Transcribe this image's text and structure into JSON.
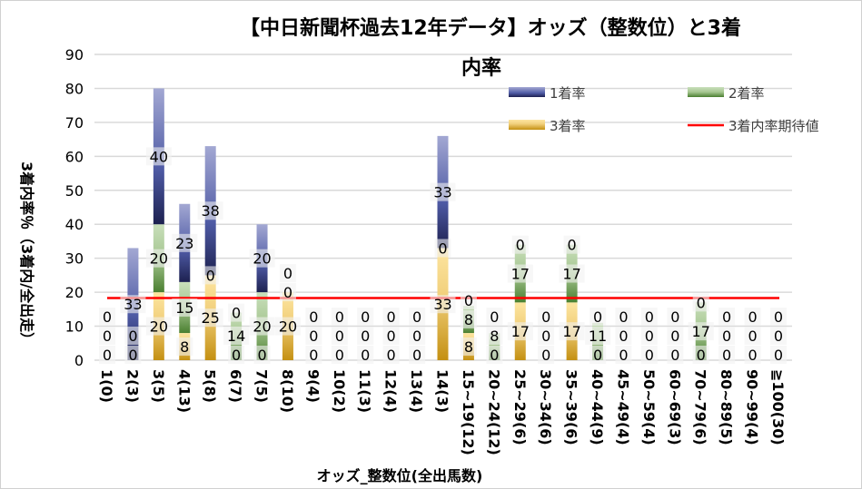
{
  "chart_data": {
    "type": "bar",
    "stacked": true,
    "title_line1": "【中日新聞杯過去12年データ】オッズ（整数位）と3着",
    "title_line2": "内率",
    "xlabel": "オッズ_整数位(全出馬数)",
    "ylabel": "3着内率％（3着内/全出走）",
    "ylim": [
      0,
      90
    ],
    "yticks": [
      "0",
      "10",
      "20",
      "30",
      "40",
      "50",
      "60",
      "70",
      "80",
      "90"
    ],
    "grid": true,
    "legend_position": "top-right",
    "categories": [
      "1(0)",
      "2(3)",
      "3(5)",
      "4(13)",
      "5(8)",
      "6(7)",
      "7(5)",
      "8(10)",
      "9(4)",
      "10(2)",
      "11(3)",
      "12(4)",
      "13(4)",
      "14(3)",
      "15~19(12)",
      "20~24(12)",
      "25~29(6)",
      "30~34(6)",
      "35~39(6)",
      "40~44(9)",
      "45~49(4)",
      "50~59(4)",
      "60~69(3)",
      "70~79(6)",
      "80~89(5)",
      "90~99(4)",
      "≧100(30)"
    ],
    "series": [
      {
        "name": "3着率",
        "color": "#d4a73a",
        "values": [
          0,
          0,
          20,
          8,
          25,
          0,
          0,
          20,
          0,
          0,
          0,
          0,
          0,
          33,
          8,
          0,
          17,
          0,
          17,
          0,
          0,
          0,
          0,
          0,
          0,
          0,
          0
        ]
      },
      {
        "name": "2着率",
        "color": "#70a050",
        "values": [
          0,
          0,
          20,
          15,
          0,
          14,
          20,
          0,
          0,
          0,
          0,
          0,
          0,
          0,
          8,
          8,
          17,
          0,
          17,
          11,
          0,
          0,
          0,
          17,
          0,
          0,
          0
        ]
      },
      {
        "name": "1着率",
        "color": "#3a4590",
        "values": [
          0,
          33,
          40,
          23,
          38,
          0,
          20,
          0,
          0,
          0,
          0,
          0,
          0,
          33,
          0,
          0,
          0,
          0,
          0,
          0,
          0,
          0,
          0,
          0,
          0,
          0,
          0
        ]
      }
    ],
    "reference_line": {
      "name": "3着内率期待値",
      "color": "#ff0000",
      "value": 18.3
    }
  }
}
